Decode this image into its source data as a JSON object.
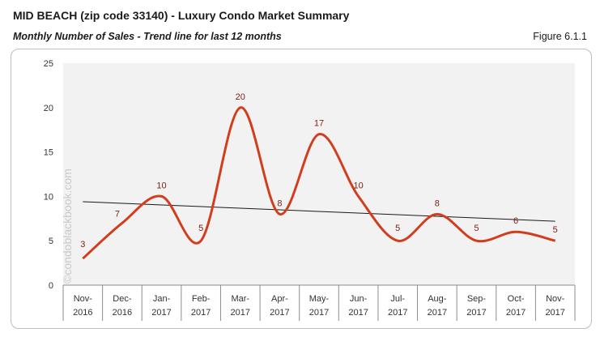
{
  "header": {
    "title": "MID BEACH (zip code 33140) - Luxury Condo Market Summary",
    "subtitle": "Monthly Number of Sales - Trend line for last 12 months",
    "figure_label": "Figure 6.1.1"
  },
  "watermark": "©condoblackbook.com",
  "chart_data": {
    "type": "line",
    "categories": [
      [
        "Nov-",
        "2016"
      ],
      [
        "Dec-",
        "2016"
      ],
      [
        "Jan-",
        "2017"
      ],
      [
        "Feb-",
        "2017"
      ],
      [
        "Mar-",
        "2017"
      ],
      [
        "Apr-",
        "2017"
      ],
      [
        "May-",
        "2017"
      ],
      [
        "Jun-",
        "2017"
      ],
      [
        "Jul-",
        "2017"
      ],
      [
        "Aug-",
        "2017"
      ],
      [
        "Sep-",
        "2017"
      ],
      [
        "Oct-",
        "2017"
      ],
      [
        "Nov-",
        "2017"
      ]
    ],
    "series": [
      {
        "values": [
          3,
          7,
          10,
          5,
          20,
          8,
          17,
          10,
          5,
          8,
          5,
          6,
          5
        ],
        "color": "#d23d1e"
      }
    ],
    "trendline": {
      "color": "#1a1a1a",
      "start": 9.4,
      "end": 7.2
    },
    "ylim": [
      0,
      25
    ],
    "yticks": [
      0,
      5,
      10,
      15,
      20,
      25
    ],
    "plot_background": "#f2f2f2",
    "grid": false
  }
}
